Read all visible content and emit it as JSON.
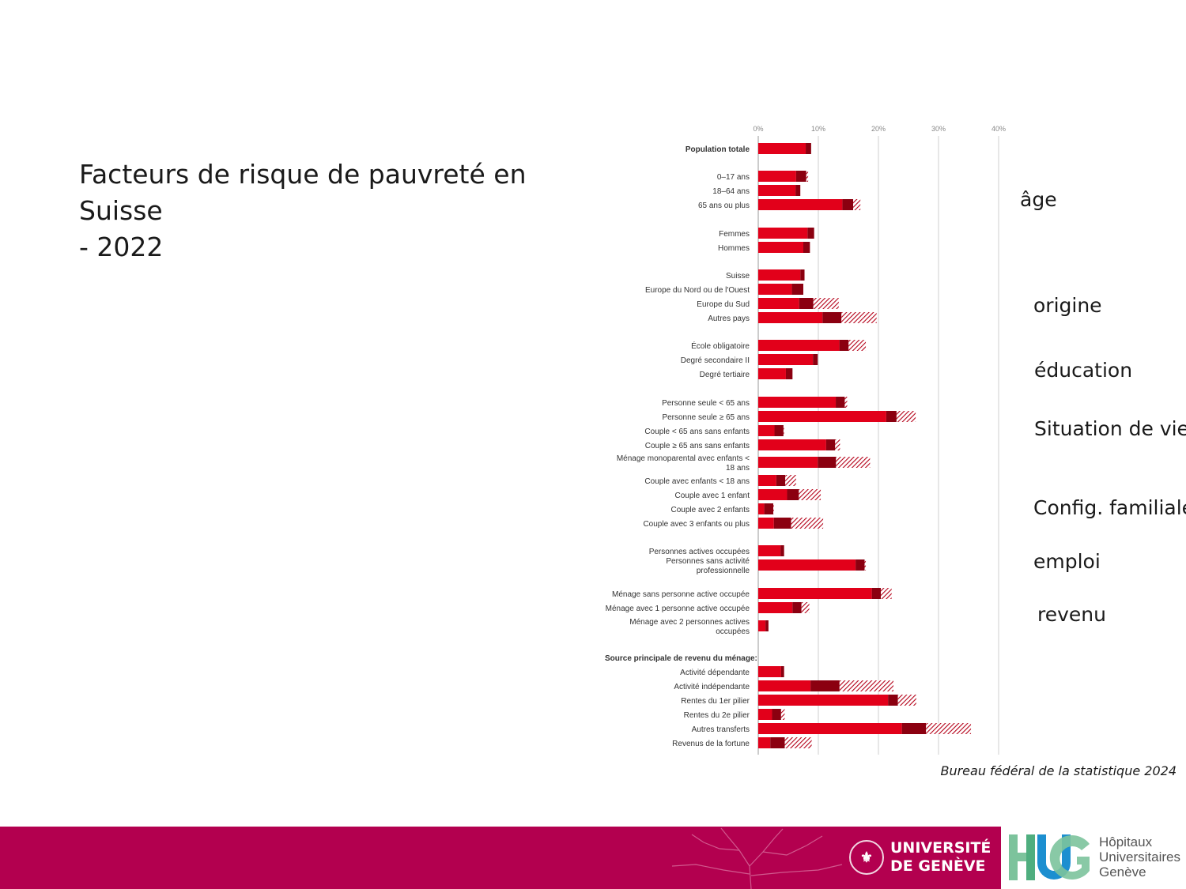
{
  "slide": {
    "title_line1": "Facteurs de risque de pauvreté en Suisse",
    "title_line2": "- 2022",
    "source": "Bureau fédéral de la statistique 2024",
    "category_labels": [
      "âge",
      "origine",
      "éducation",
      "Situation de vie",
      "Config. familiale",
      "emploi",
      "revenu"
    ]
  },
  "footer": {
    "unige_line1": "UNIVERSITÉ",
    "unige_line2": "DE GENÈVE",
    "hug_line1": "Hôpitaux",
    "hug_line2": "Universitaires",
    "hug_line3": "Genève"
  },
  "colors": {
    "bar": "#e2001a",
    "dark": "#8b0010",
    "hatch": "#b40018",
    "footer": "#b3004f",
    "hug_green": "#7cc39c",
    "hug_blue": "#1c8fd0"
  },
  "chart_data": {
    "type": "bar",
    "orientation": "horizontal",
    "xlim": [
      0,
      40
    ],
    "xticks": [
      "0%",
      "10%",
      "20%",
      "30%",
      "40%"
    ],
    "grid": true,
    "series_note": "value with confidence interval (dark segment and hatched segment)",
    "rows": [
      {
        "label": "Population totale",
        "bold": true,
        "value": 8.2,
        "lo": 7.9,
        "hi": 8.8
      },
      {
        "label": "0–17 ans",
        "value": 6.5,
        "lo": 6.3,
        "hi": 8.3
      },
      {
        "label": "18–64 ans",
        "value": 6.5,
        "lo": 6.2,
        "hi": 7.0
      },
      {
        "label": "65 ans ou plus",
        "value": 14.3,
        "lo": 14.0,
        "hi": 17.0
      },
      {
        "label": "Femmes",
        "value": 8.6,
        "lo": 8.2,
        "hi": 9.3
      },
      {
        "label": "Hommes",
        "value": 7.7,
        "lo": 7.5,
        "hi": 8.6
      },
      {
        "label": "Suisse",
        "value": 7.2,
        "lo": 7.0,
        "hi": 7.7
      },
      {
        "label": "Europe du Nord ou de l'Ouest",
        "value": 6.2,
        "lo": 5.6,
        "hi": 7.5
      },
      {
        "label": "Europe du Sud",
        "value": 6.9,
        "lo": 6.8,
        "hi": 13.4
      },
      {
        "label": "Autres pays",
        "value": 10.7,
        "lo": 10.7,
        "hi": 19.7
      },
      {
        "label": "École obligatoire",
        "value": 13.5,
        "lo": 13.5,
        "hi": 17.9
      },
      {
        "label": "Degré secondaire II",
        "value": 9.1,
        "lo": 9.1,
        "hi": 9.9
      },
      {
        "label": "Degré tertiaire",
        "value": 4.6,
        "lo": 4.6,
        "hi": 5.7
      },
      {
        "label": "Personne seule < 65 ans",
        "value": 12.9,
        "lo": 12.9,
        "hi": 14.8
      },
      {
        "label": "Personne seule ≥ 65 ans",
        "value": 21.3,
        "lo": 21.3,
        "hi": 26.2
      },
      {
        "label": "Couple < 65 ans sans enfants",
        "value": 2.7,
        "lo": 2.7,
        "hi": 4.3
      },
      {
        "label": "Couple ≥ 65 ans sans enfants",
        "value": 11.3,
        "lo": 11.3,
        "hi": 13.6
      },
      {
        "label": "Ménage monoparental avec enfants < 18 ans",
        "value": 9.9,
        "lo": 9.9,
        "hi": 18.6
      },
      {
        "label": "Couple avec enfants < 18 ans",
        "value": 3.0,
        "lo": 3.0,
        "hi": 6.3
      },
      {
        "label": "Couple avec 1 enfant",
        "value": 4.8,
        "lo": 4.8,
        "hi": 10.4
      },
      {
        "label": "Couple avec 2 enfants",
        "value": 1.0,
        "lo": 1.0,
        "hi": 2.6
      },
      {
        "label": "Couple avec 3 enfants ou plus",
        "value": 2.6,
        "lo": 2.6,
        "hi": 10.8
      },
      {
        "label": "Personnes actives occupées",
        "value": 3.7,
        "lo": 3.7,
        "hi": 4.3
      },
      {
        "label": "Personnes sans activité professionnelle",
        "value": 16.2,
        "lo": 16.2,
        "hi": 17.9
      },
      {
        "label": "Ménage sans personne active occupée",
        "value": 18.9,
        "lo": 18.9,
        "hi": 22.2
      },
      {
        "label": "Ménage avec 1 personne active occupée",
        "value": 5.7,
        "lo": 5.7,
        "hi": 8.5
      },
      {
        "label": "Ménage avec 2 personnes actives occupées",
        "value": 1.2,
        "lo": 1.2,
        "hi": 1.7
      },
      {
        "label": "Source principale de revenu du ménage:",
        "bold": true,
        "header": true
      },
      {
        "label": "Activité dépendante",
        "value": 3.8,
        "lo": 3.8,
        "hi": 4.3
      },
      {
        "label": "Activité indépendante",
        "value": 8.7,
        "lo": 8.7,
        "hi": 22.5
      },
      {
        "label": "Rentes du 1er pilier",
        "value": 21.6,
        "lo": 21.6,
        "hi": 26.3
      },
      {
        "label": "Rentes du 2e pilier",
        "value": 2.3,
        "lo": 2.3,
        "hi": 4.4
      },
      {
        "label": "Autres transferts",
        "value": 23.9,
        "lo": 23.9,
        "hi": 35.4
      },
      {
        "label": "Revenus de la fortune",
        "value": 2.0,
        "lo": 2.0,
        "hi": 8.9
      }
    ]
  }
}
